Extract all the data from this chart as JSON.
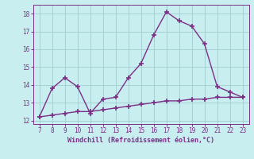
{
  "x": [
    7,
    8,
    9,
    10,
    11,
    12,
    13,
    14,
    15,
    16,
    17,
    18,
    19,
    20,
    21,
    22,
    23
  ],
  "y_line1": [
    12.2,
    13.8,
    14.4,
    13.9,
    12.4,
    13.2,
    13.3,
    14.4,
    15.2,
    16.8,
    18.1,
    17.6,
    17.3,
    16.3,
    13.9,
    13.6,
    13.3
  ],
  "y_line2": [
    12.2,
    12.3,
    12.4,
    12.5,
    12.5,
    12.6,
    12.7,
    12.8,
    12.9,
    13.0,
    13.1,
    13.1,
    13.2,
    13.2,
    13.3,
    13.3,
    13.3
  ],
  "line_color": "#7B2F86",
  "background_color": "#C8EEF0",
  "grid_color": "#A0CDD0",
  "text_color": "#7B2F86",
  "xlabel": "Windchill (Refroidissement éolien,°C)",
  "xlim": [
    6.5,
    23.5
  ],
  "ylim": [
    11.8,
    18.5
  ],
  "yticks": [
    12,
    13,
    14,
    15,
    16,
    17,
    18
  ],
  "xticks": [
    7,
    8,
    9,
    10,
    11,
    12,
    13,
    14,
    15,
    16,
    17,
    18,
    19,
    20,
    21,
    22,
    23
  ],
  "marker": "+",
  "marker_size": 4,
  "line_width": 1.0
}
